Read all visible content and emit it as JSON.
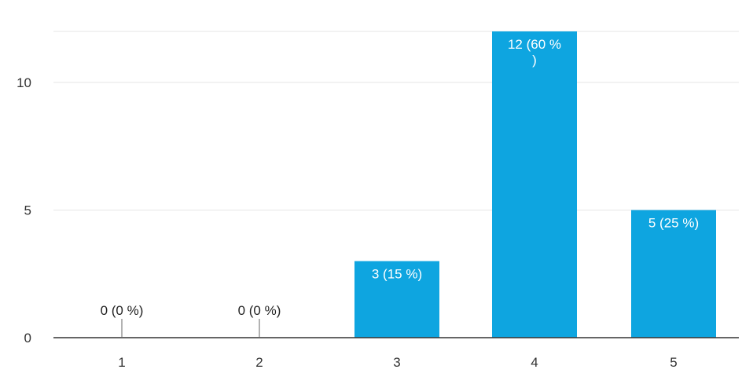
{
  "chart_data": {
    "type": "bar",
    "categories": [
      "1",
      "2",
      "3",
      "4",
      "5"
    ],
    "values": [
      0,
      0,
      3,
      12,
      5
    ],
    "data_labels": [
      [
        "0 (0 %)"
      ],
      [
        "0 (0 %)"
      ],
      [
        "3 (15 %)"
      ],
      [
        "12 (60 %",
        ")"
      ],
      [
        "5 (25 %)"
      ]
    ],
    "ylim": [
      0,
      12
    ],
    "yticks": [
      "0",
      "5",
      "10"
    ],
    "ytick_values": [
      0,
      5,
      10
    ],
    "grid": true,
    "bar_color": "#0ea5e0",
    "grid_color": "#e6e6e6",
    "axis_color": "#333333"
  }
}
